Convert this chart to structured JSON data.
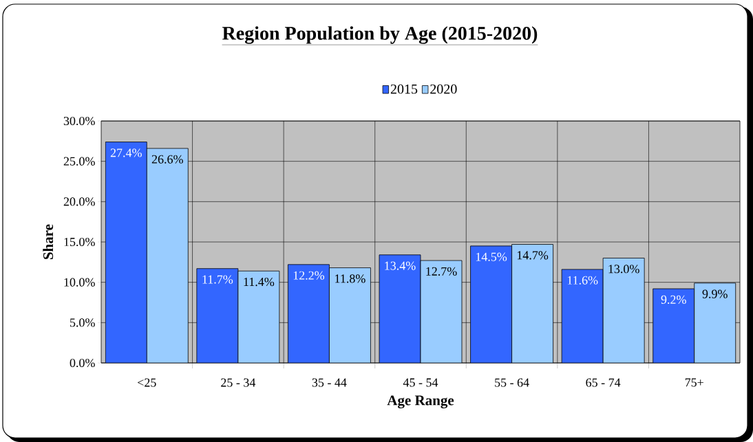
{
  "chart_data": {
    "type": "bar",
    "title": "Region Population by Age (2015-2020)",
    "xlabel": "Age Range",
    "ylabel": "Share",
    "categories": [
      "<25",
      "25 - 34",
      "35 - 44",
      "45 - 54",
      "55 - 64",
      "65 - 74",
      "75+"
    ],
    "series": [
      {
        "name": "2015",
        "color": "#3366ff",
        "values": [
          27.4,
          11.7,
          12.2,
          13.4,
          14.5,
          11.6,
          9.2
        ],
        "value_labels": [
          "27.4%",
          "11.7%",
          "12.2%",
          "13.4%",
          "14.5%",
          "11.6%",
          "9.2%"
        ]
      },
      {
        "name": "2020",
        "color": "#99ccff",
        "values": [
          26.6,
          11.4,
          11.8,
          12.7,
          14.7,
          13.0,
          9.9
        ],
        "value_labels": [
          "26.6%",
          "11.4%",
          "11.8%",
          "12.7%",
          "14.7%",
          "13.0%",
          "9.9%"
        ]
      }
    ],
    "ylim": [
      0,
      30
    ],
    "yticks": [
      {
        "value": 0,
        "label": "0.0%"
      },
      {
        "value": 5,
        "label": "5.0%"
      },
      {
        "value": 10,
        "label": "10.0%"
      },
      {
        "value": 15,
        "label": "15.0%"
      },
      {
        "value": 20,
        "label": "20.0%"
      },
      {
        "value": 25,
        "label": "25.0%"
      },
      {
        "value": 30,
        "label": "30.0%"
      }
    ],
    "grid": true,
    "legend": "top"
  }
}
